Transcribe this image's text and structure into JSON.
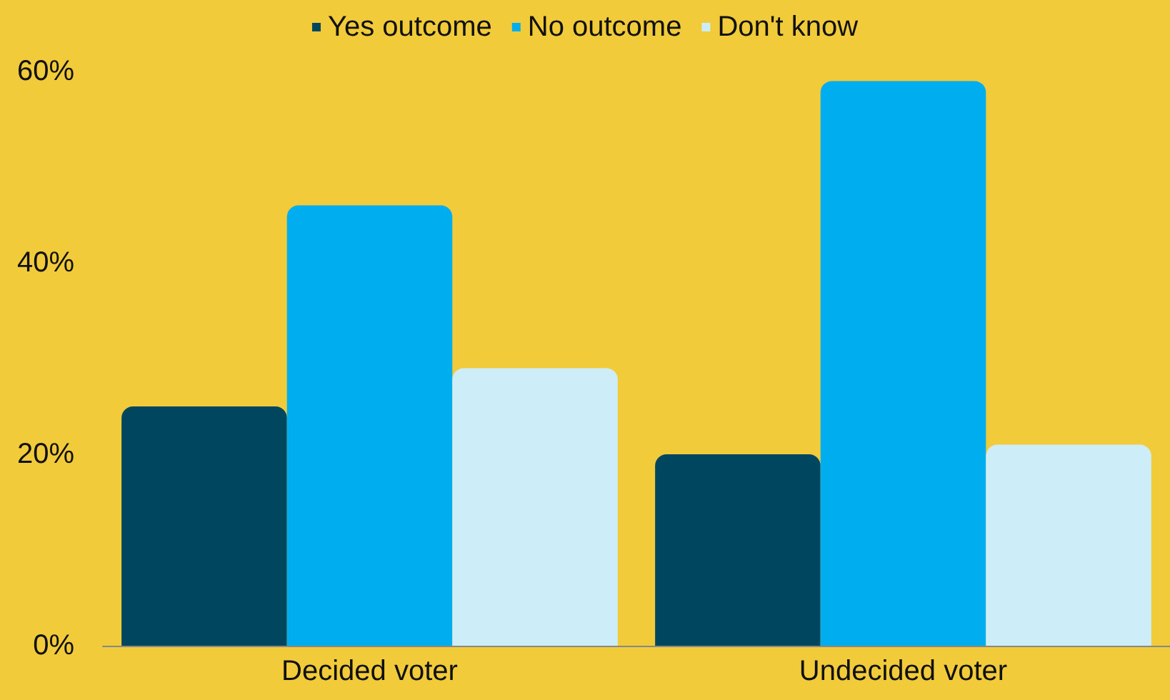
{
  "chart_data": {
    "type": "bar",
    "categories": [
      "Decided voter",
      "Undecided voter"
    ],
    "series": [
      {
        "name": "Yes outcome",
        "color": "#00465f",
        "values": [
          25,
          20
        ]
      },
      {
        "name": "No outcome",
        "color": "#00aeef",
        "values": [
          46,
          59
        ]
      },
      {
        "name": "Don't know",
        "color": "#cdeef9",
        "values": [
          29,
          21
        ]
      }
    ],
    "ylim": [
      0,
      60
    ],
    "yticks": [
      {
        "value": 0,
        "label": "0%"
      },
      {
        "value": 20,
        "label": "20%"
      },
      {
        "value": 40,
        "label": "40%"
      },
      {
        "value": 60,
        "label": "60%"
      }
    ],
    "grid": false,
    "legend": "top"
  }
}
